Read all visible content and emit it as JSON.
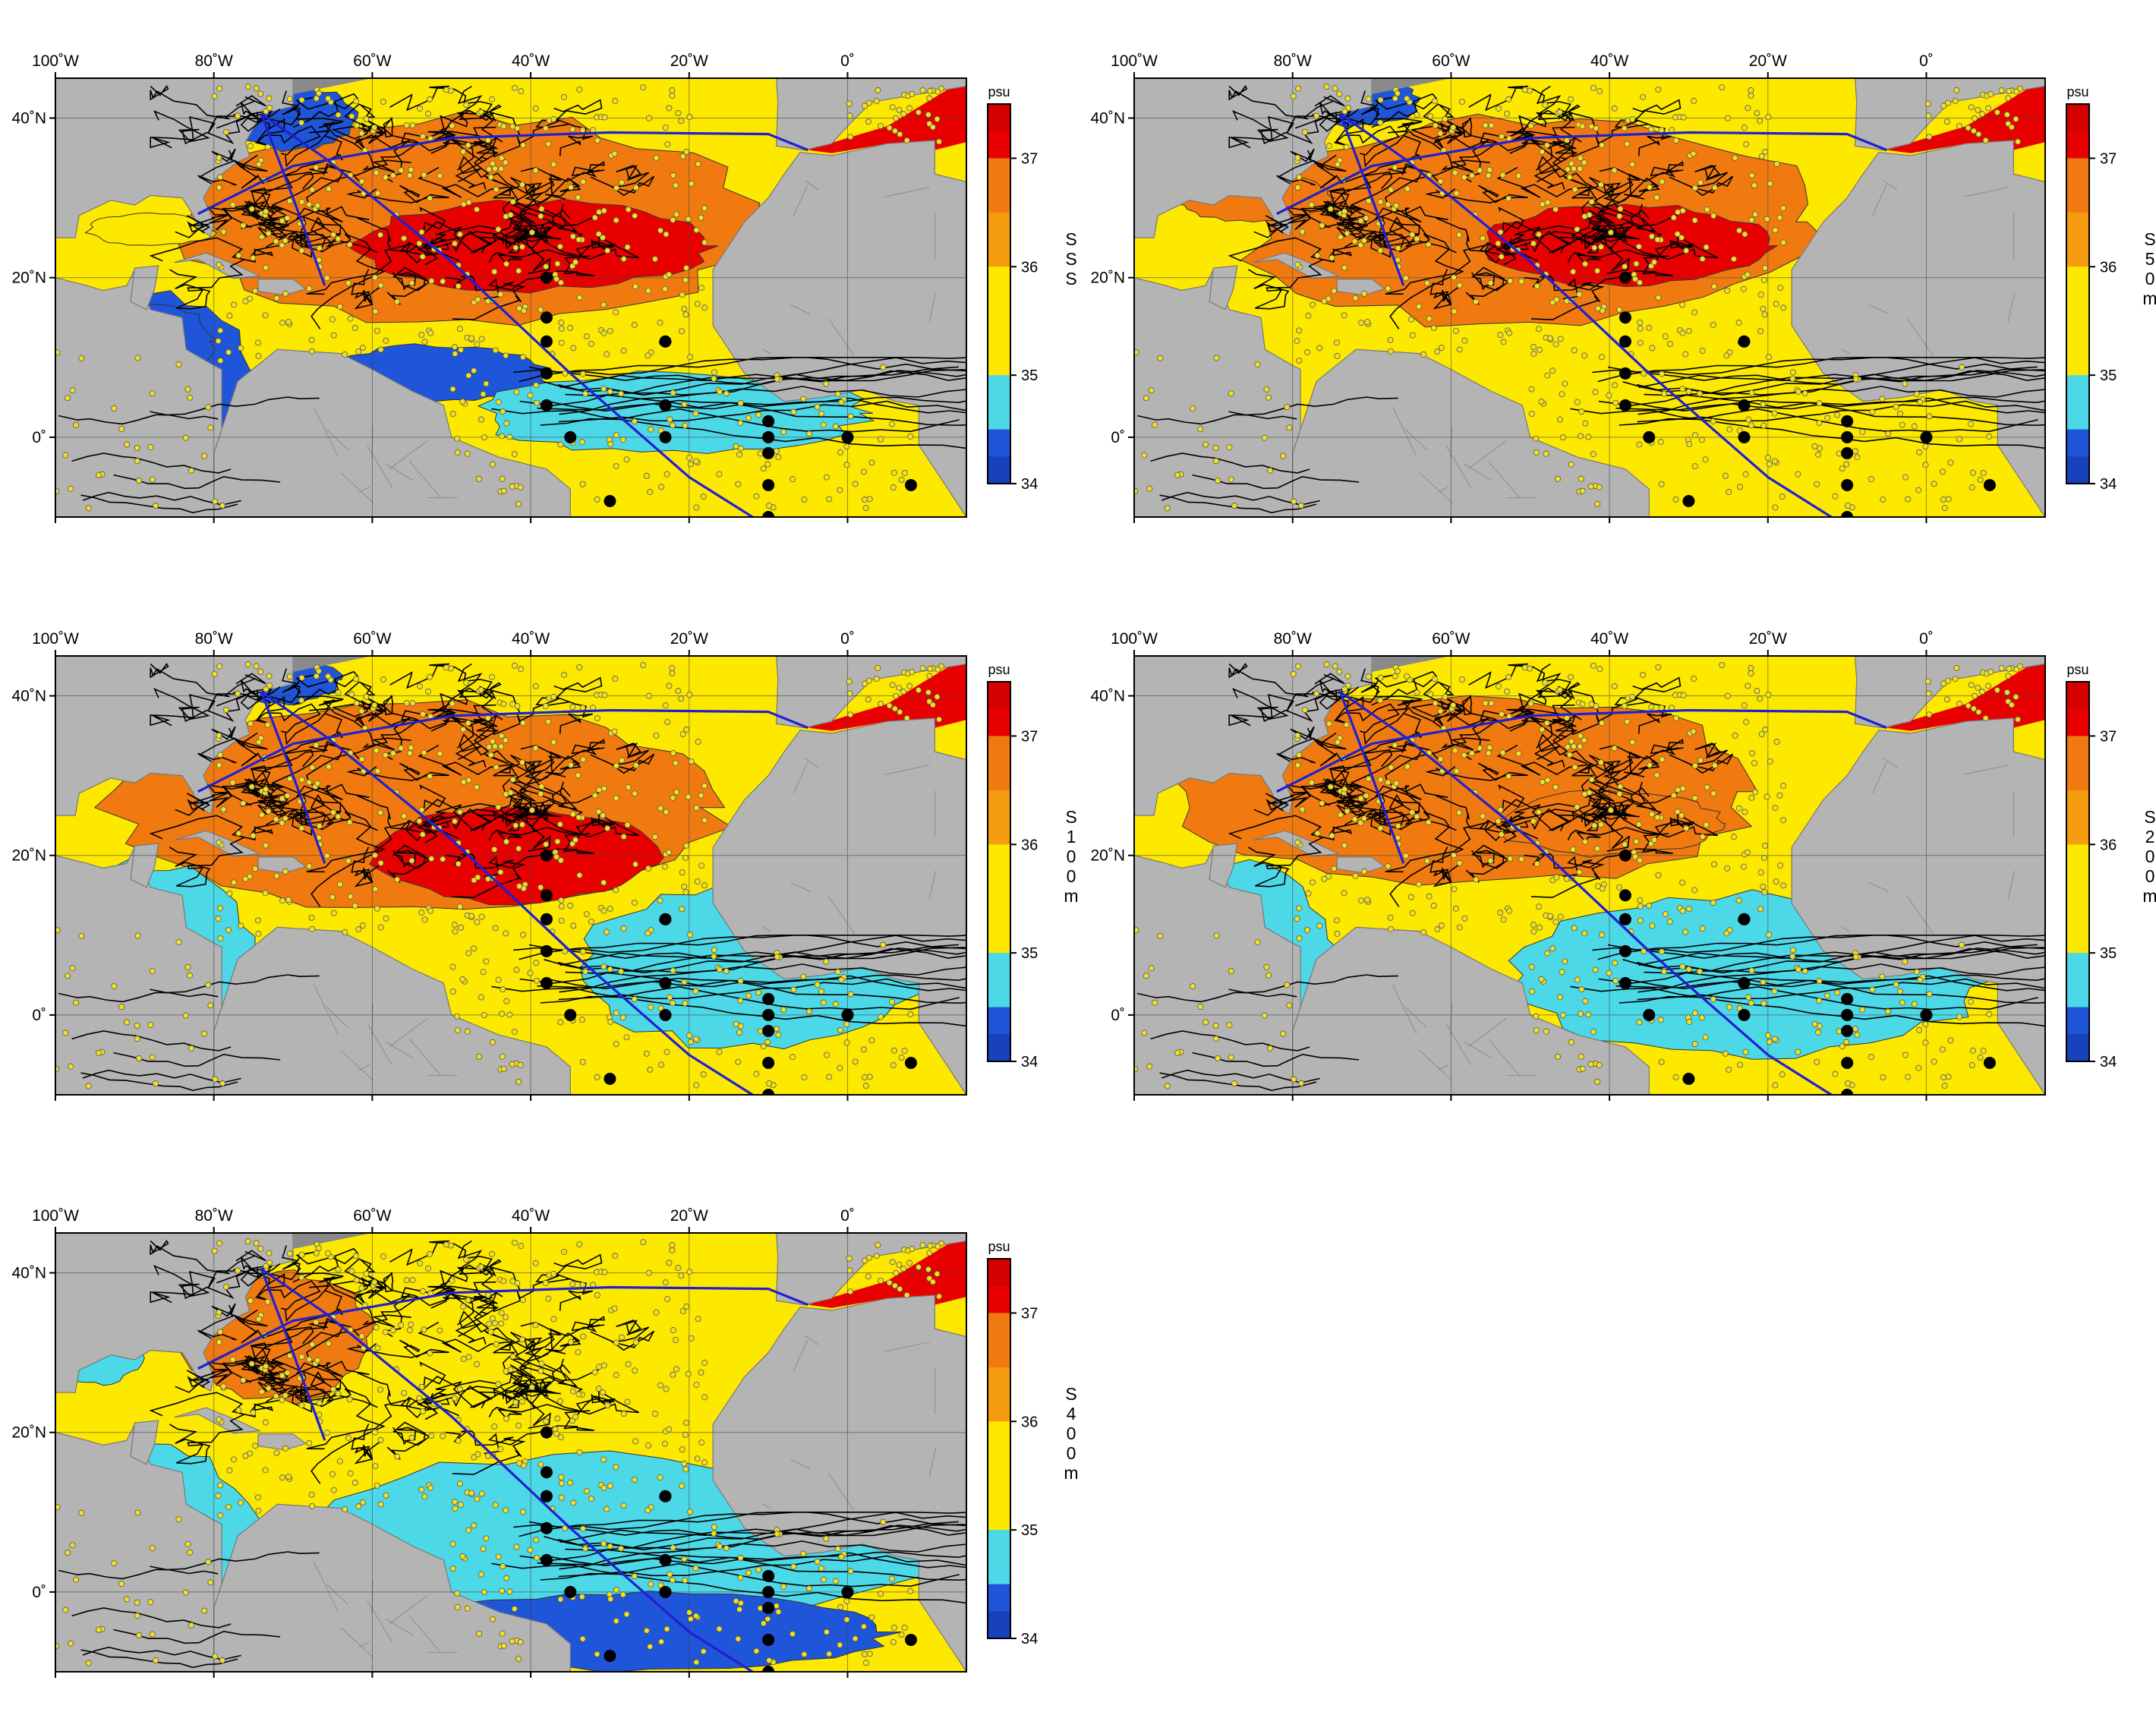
{
  "figure": {
    "x_tick_labels": [
      "100˚W",
      "80˚W",
      "60˚W",
      "40˚W",
      "20˚W",
      "0˚"
    ],
    "y_tick_labels": [
      "40˚N",
      "20˚N",
      "0˚"
    ],
    "colorbar": {
      "unit": "psu",
      "tick_labels": [
        "37",
        "36",
        "35",
        "34"
      ],
      "colors": [
        "#e80000",
        "#f07a10",
        "#fde900",
        "#4dd8e8",
        "#1f55d8"
      ]
    }
  },
  "panels": [
    {
      "id": "sss",
      "label_lines": [
        "S",
        "S",
        "S"
      ],
      "dominant": "high"
    },
    {
      "id": "s50m",
      "label_lines": [
        "S",
        "5",
        "0",
        "m"
      ],
      "dominant": "high"
    },
    {
      "id": "s100m",
      "label_lines": [
        "S",
        "1",
        "0",
        "0",
        "m"
      ],
      "dominant": "mid-high"
    },
    {
      "id": "s200m",
      "label_lines": [
        "S",
        "2",
        "0",
        "0",
        "m"
      ],
      "dominant": "mid"
    },
    {
      "id": "s400m",
      "label_lines": [
        "S",
        "4",
        "0",
        "0",
        "m"
      ],
      "dominant": "low"
    }
  ],
  "colors": {
    "land": "#b4b4b4",
    "land_dark": "#8a8a8a",
    "red": "#e80000",
    "orange": "#f07a10",
    "yellow": "#fde900",
    "cyan": "#4dd8e8",
    "blue": "#1f55d8",
    "section_line": "#2020d0",
    "float_dot": "#f0e020"
  }
}
